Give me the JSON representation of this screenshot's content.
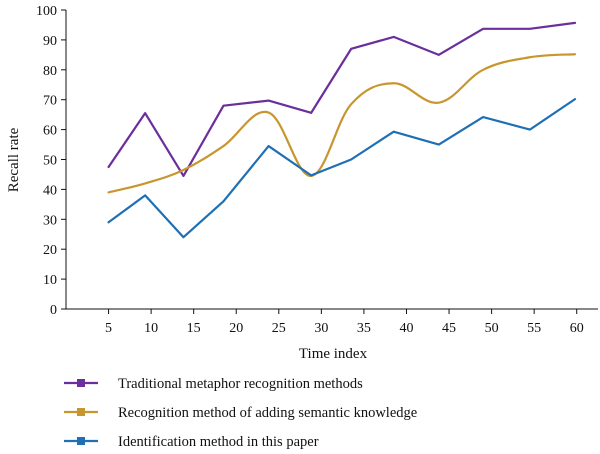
{
  "chart_data": {
    "type": "line",
    "title": "",
    "xlabel": "Time index",
    "ylabel": "Recall rate",
    "x_ticks": [
      5,
      10,
      15,
      20,
      25,
      30,
      35,
      40,
      45,
      50,
      55,
      60
    ],
    "y_ticks": [
      0,
      10,
      20,
      30,
      40,
      50,
      60,
      70,
      80,
      90,
      100
    ],
    "xlim": [
      0,
      62.5
    ],
    "ylim": [
      0,
      100
    ],
    "grid": false,
    "legend_position": "bottom",
    "series": [
      {
        "name": "Traditional metaphor recognition methods",
        "color": "#6a2f9c",
        "smooth": false,
        "x": [
          5,
          9.3,
          13.8,
          18.5,
          23.8,
          28.8,
          33.5,
          38.5,
          43.8,
          49,
          54.5,
          59.8
        ],
        "y": [
          47.5,
          65.5,
          44.5,
          68,
          69.7,
          65.6,
          87,
          91,
          85,
          93.7,
          93.7,
          95.7
        ]
      },
      {
        "name": "Recognition method of adding semantic knowledge",
        "color": "#c8962e",
        "smooth": true,
        "x": [
          5,
          9.3,
          13.8,
          18.5,
          23.8,
          28.8,
          33.5,
          38.5,
          43.8,
          49,
          54.5,
          59.8
        ],
        "y": [
          39,
          42,
          46.5,
          54.5,
          65.7,
          44.5,
          68.5,
          75.5,
          69,
          80,
          84.2,
          85.2
        ]
      },
      {
        "name": "Identification method in this paper",
        "color": "#1f6fb5",
        "smooth": false,
        "x": [
          5,
          9.3,
          13.8,
          18.5,
          23.8,
          28.8,
          33.5,
          38.5,
          43.8,
          49,
          54.5,
          59.8
        ],
        "y": [
          29,
          38,
          24,
          36,
          54.5,
          44.7,
          50,
          59.3,
          55,
          64.2,
          60,
          70.2
        ]
      }
    ]
  }
}
